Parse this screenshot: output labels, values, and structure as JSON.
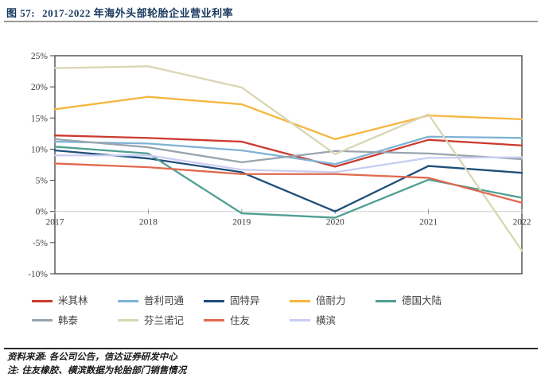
{
  "header": {
    "figure_label": "图 57:",
    "title": "2017-2022 年海外头部轮胎企业营业利率"
  },
  "chart_data": {
    "type": "line",
    "title": "2017-2022 年海外头部轮胎企业营业利率",
    "x_categories": [
      "2017",
      "2018",
      "2019",
      "2020",
      "2021",
      "2022"
    ],
    "y_unit": "%",
    "ylim": [
      -10,
      25
    ],
    "yticks": [
      25,
      20,
      15,
      10,
      5,
      0,
      -5,
      -10
    ],
    "grid": "single horizontal gridline at 0%",
    "legend_position": "bottom",
    "axis_color": "#3f3f3f",
    "gridline_color": "#d9d9d9",
    "series": [
      {
        "name": "米其林",
        "color": "#cb3a2e",
        "values": [
          12.2,
          11.8,
          11.2,
          7.2,
          11.5,
          10.6
        ]
      },
      {
        "name": "普利司通",
        "color": "#7fb3d5",
        "values": [
          11.2,
          10.9,
          9.8,
          7.6,
          12.0,
          11.8
        ]
      },
      {
        "name": "固特异",
        "color": "#1f4e79",
        "values": [
          9.8,
          8.5,
          6.3,
          0.0,
          7.3,
          6.2
        ]
      },
      {
        "name": "倍耐力",
        "color": "#f6b63e",
        "values": [
          16.4,
          18.4,
          17.2,
          11.6,
          15.4,
          14.8
        ]
      },
      {
        "name": "德国大陆",
        "color": "#4f9e92",
        "values": [
          10.4,
          9.3,
          -0.3,
          -1.0,
          5.1,
          2.2
        ]
      },
      {
        "name": "韩泰",
        "color": "#98a4ae",
        "values": [
          11.6,
          10.3,
          7.9,
          9.7,
          9.3,
          8.4
        ]
      },
      {
        "name": "芬兰诺记",
        "color": "#d9d6b3",
        "values": [
          23.0,
          23.3,
          19.9,
          9.2,
          15.6,
          -6.3
        ]
      },
      {
        "name": "住友",
        "color": "#e0694d",
        "values": [
          7.7,
          7.1,
          6.0,
          6.0,
          5.4,
          1.4
        ]
      },
      {
        "name": "横滨",
        "color": "#c9cdf2",
        "values": [
          9.0,
          9.0,
          6.7,
          6.3,
          8.6,
          8.7
        ]
      }
    ]
  },
  "footer": {
    "source": "资料来源: 各公司公告，信达证券研发中心",
    "note": "注: 住友橡胶、横滨数据为轮胎部门销售情况"
  }
}
